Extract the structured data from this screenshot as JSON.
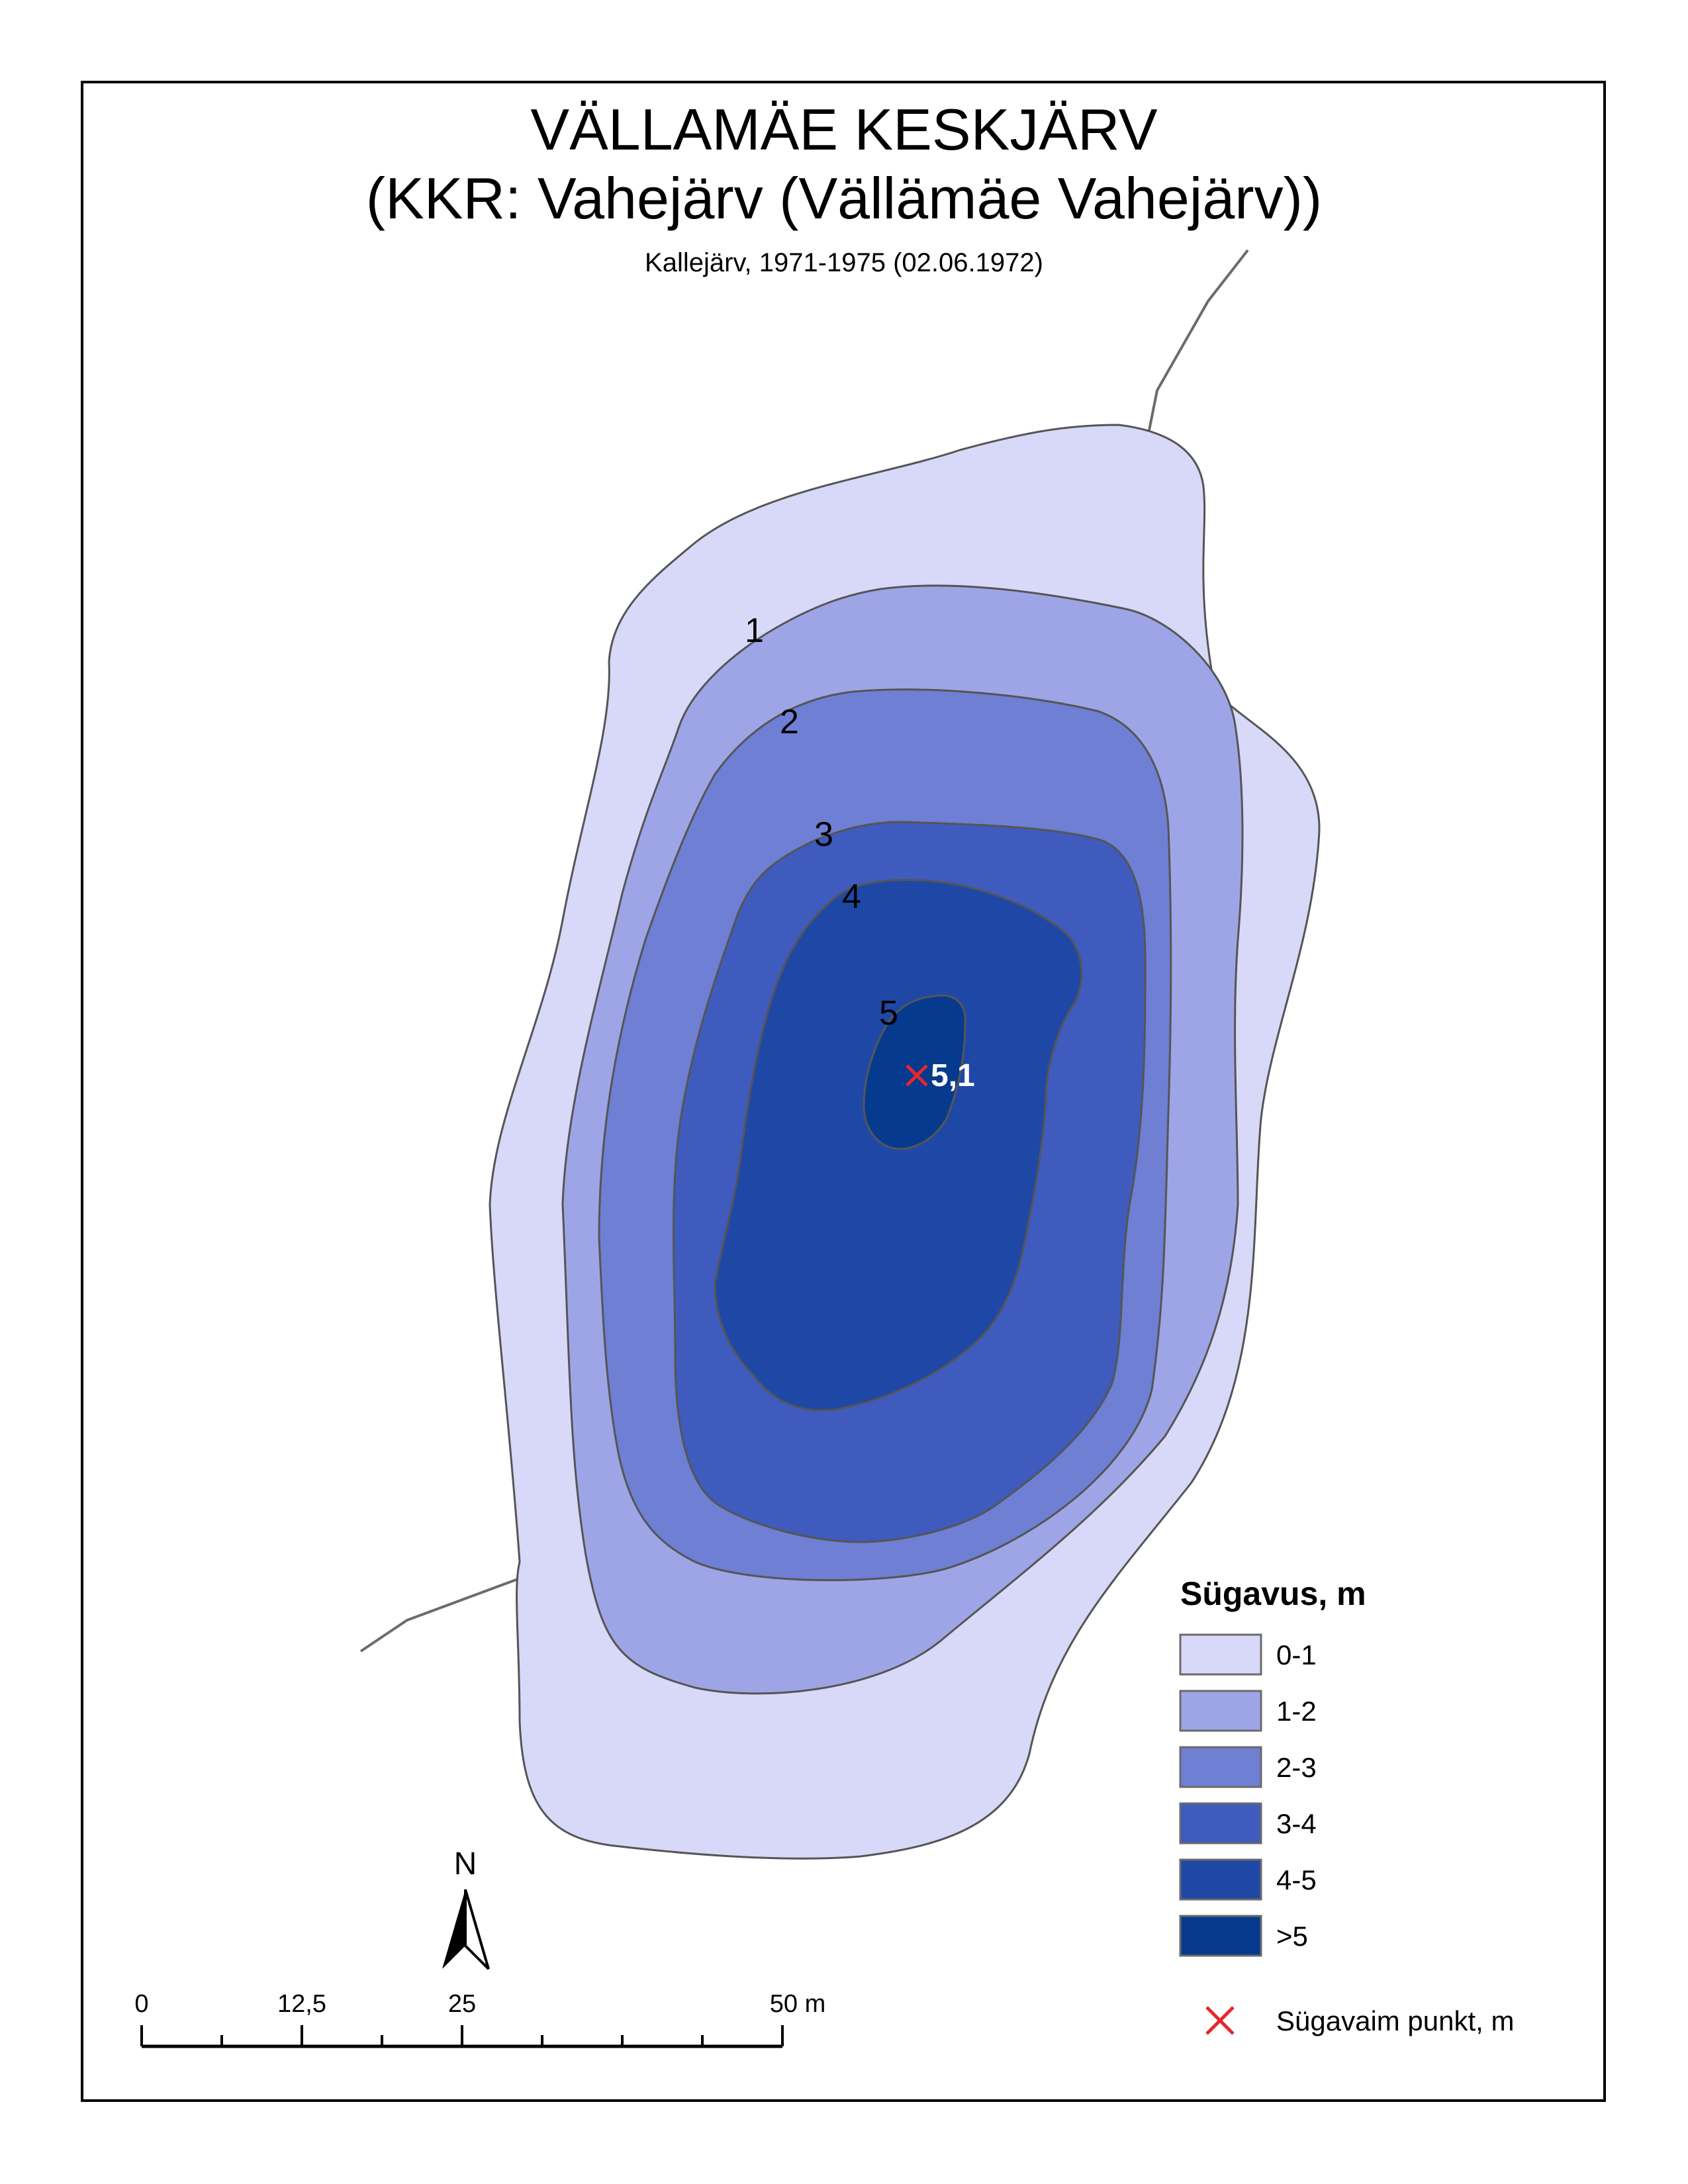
{
  "title": {
    "line1": "VÄLLAMÄE KESKJÄRV",
    "line2": "(KKR: Vahejärv (Vällämäe Vahejärv))",
    "subtitle": "Kallejärv, 1971-1975 (02.06.1972)"
  },
  "contour_labels": [
    "1",
    "2",
    "3",
    "4",
    "5"
  ],
  "deepest_point": {
    "value_label": "5,1",
    "marker_color": "#e8262a"
  },
  "legend": {
    "title": "Sügavus, m",
    "classes": [
      {
        "label": "0-1",
        "color": "#d8d9f9"
      },
      {
        "label": "1-2",
        "color": "#9ea5e6"
      },
      {
        "label": "2-3",
        "color": "#6e7fd4"
      },
      {
        "label": "3-4",
        "color": "#3f5bbd"
      },
      {
        "label": "4-5",
        "color": "#1f48a6"
      },
      {
        "label": ">5",
        "color": "#063a8e"
      }
    ],
    "deepest_label": "Sügavaim punkt, m"
  },
  "scale_bar": {
    "labels": [
      "0",
      "12,5",
      "25",
      "50 m"
    ]
  },
  "north_arrow": {
    "label": "N"
  }
}
